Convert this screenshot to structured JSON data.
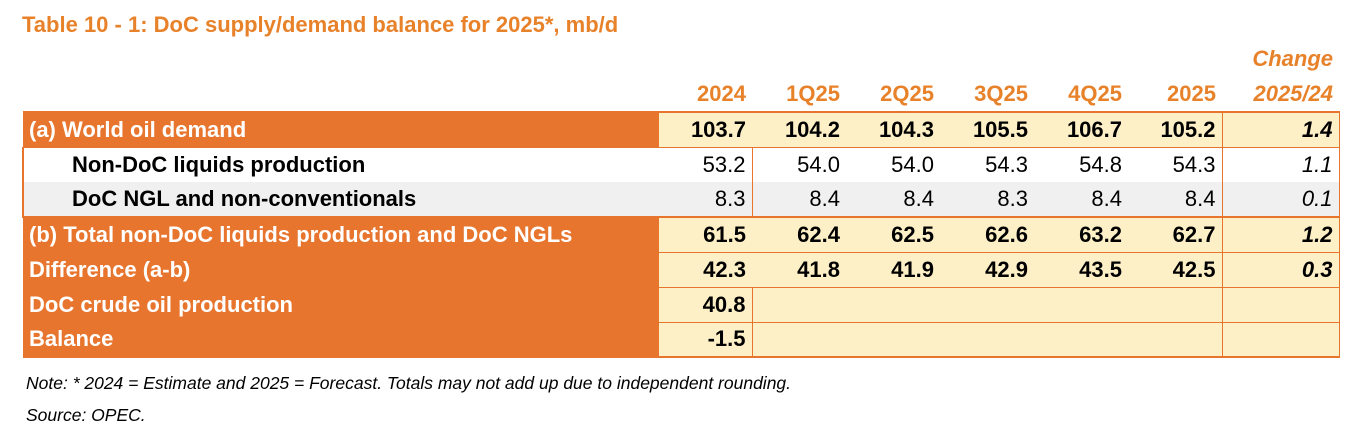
{
  "title": "Table 10 - 1: DoC supply/demand balance for 2025*, mb/d",
  "header": {
    "change_top": "Change",
    "columns": [
      "2024",
      "1Q25",
      "2Q25",
      "3Q25",
      "4Q25",
      "2025",
      "2025/24"
    ]
  },
  "rows": [
    {
      "label": "(a) World oil demand",
      "values": [
        "103.7",
        "104.2",
        "104.3",
        "105.5",
        "106.7",
        "105.2"
      ],
      "change": "1.4"
    },
    {
      "label": "Non-DoC liquids production",
      "values": [
        "53.2",
        "54.0",
        "54.0",
        "54.3",
        "54.8",
        "54.3"
      ],
      "change": "1.1"
    },
    {
      "label": "DoC NGL and non-conventionals",
      "values": [
        "8.3",
        "8.4",
        "8.4",
        "8.3",
        "8.4",
        "8.4"
      ],
      "change": "0.1"
    },
    {
      "label": "(b) Total non-DoC liquids production and DoC NGLs",
      "values": [
        "61.5",
        "62.4",
        "62.5",
        "62.6",
        "63.2",
        "62.7"
      ],
      "change": "1.2"
    },
    {
      "label": "Difference (a-b)",
      "values": [
        "42.3",
        "41.8",
        "41.9",
        "42.9",
        "43.5",
        "42.5"
      ],
      "change": "0.3"
    },
    {
      "label": "DoC crude oil production",
      "values": [
        "40.8"
      ]
    },
    {
      "label": "Balance",
      "values": [
        "-1.5"
      ]
    }
  ],
  "notes": {
    "note": "Note: * 2024 = Estimate and 2025 = Forecast. Totals may not add up due to independent rounding.",
    "source": "Source: OPEC."
  },
  "colors": {
    "accent": "#E8822A",
    "label_fill": "#E8752E",
    "cell_fill": "#FEF0C6",
    "alt_row": "#F0F0F0"
  }
}
